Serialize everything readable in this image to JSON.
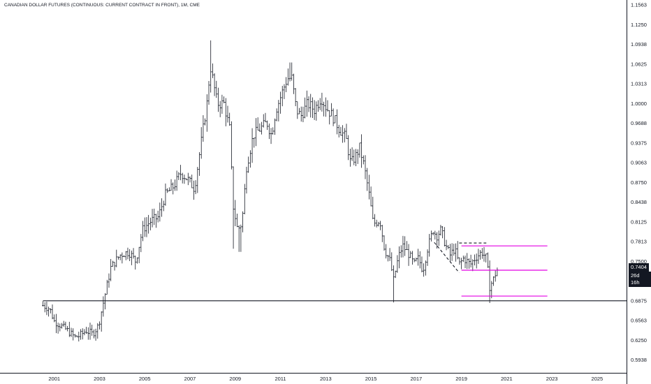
{
  "chart_data": {
    "type": "ohlc",
    "title": "CANADIAN DOLLAR FUTURES (CONTINUOUS: CURRENT CONTRACT IN FRONT), 1M, CME",
    "x_tick_labels": [
      "2001",
      "2003",
      "2005",
      "2007",
      "2009",
      "2011",
      "2013",
      "2015",
      "2017",
      "2019",
      "2021",
      "2023",
      "2025"
    ],
    "x_tick_values": [
      2001,
      2003,
      2005,
      2007,
      2009,
      2011,
      2013,
      2015,
      2017,
      2019,
      2021,
      2023,
      2025
    ],
    "xlim": [
      1998.6,
      2026.3
    ],
    "y_tick_labels": [
      "1.1563",
      "1.1250",
      "1.0938",
      "1.0625",
      "1.0313",
      "1.0000",
      "0.9688",
      "0.9375",
      "0.9063",
      "0.8750",
      "0.8438",
      "0.8125",
      "0.7813",
      "0.7500",
      "0.7188",
      "0.6875",
      "0.6563",
      "0.6250",
      "0.5938"
    ],
    "y_tick_values": [
      1.1563,
      1.125,
      1.0938,
      1.0625,
      1.0313,
      1.0,
      0.9688,
      0.9375,
      0.9063,
      0.875,
      0.8438,
      0.8125,
      0.7813,
      0.75,
      0.7188,
      0.6875,
      0.6563,
      0.625,
      0.5938
    ],
    "ylim": [
      0.5734,
      1.164
    ],
    "last_price": "0.7404",
    "last_price_value": 0.7404,
    "bar_timer": "26d 16h",
    "anchors": [
      [
        2000.5,
        0.68
      ],
      [
        2000.8,
        0.675
      ],
      [
        2001.0,
        0.655
      ],
      [
        2001.3,
        0.648
      ],
      [
        2001.6,
        0.64
      ],
      [
        2001.9,
        0.63
      ],
      [
        2002.1,
        0.632
      ],
      [
        2002.4,
        0.64
      ],
      [
        2002.7,
        0.635
      ],
      [
        2002.95,
        0.648
      ],
      [
        2003.2,
        0.69
      ],
      [
        2003.5,
        0.74
      ],
      [
        2003.9,
        0.76
      ],
      [
        2004.3,
        0.765
      ],
      [
        2004.6,
        0.75
      ],
      [
        2004.9,
        0.8
      ],
      [
        2005.3,
        0.815
      ],
      [
        2005.6,
        0.82
      ],
      [
        2005.9,
        0.855
      ],
      [
        2006.3,
        0.87
      ],
      [
        2006.6,
        0.89
      ],
      [
        2006.9,
        0.88
      ],
      [
        2007.2,
        0.865
      ],
      [
        2007.5,
        0.94
      ],
      [
        2007.75,
        1.0
      ],
      [
        2007.9,
        1.06
      ],
      [
        2008.2,
        1.0
      ],
      [
        2008.5,
        1.0
      ],
      [
        2008.75,
        0.96
      ],
      [
        2008.9,
        0.84
      ],
      [
        2009.1,
        0.8
      ],
      [
        2009.3,
        0.81
      ],
      [
        2009.5,
        0.9
      ],
      [
        2009.8,
        0.95
      ],
      [
        2010.1,
        0.96
      ],
      [
        2010.4,
        0.97
      ],
      [
        2010.6,
        0.95
      ],
      [
        2010.8,
        0.99
      ],
      [
        2011.0,
        1.01
      ],
      [
        2011.3,
        1.04
      ],
      [
        2011.5,
        1.04
      ],
      [
        2011.7,
        0.99
      ],
      [
        2011.9,
        0.98
      ],
      [
        2012.2,
        1.0
      ],
      [
        2012.5,
        0.99
      ],
      [
        2012.8,
        1.01
      ],
      [
        2013.0,
        0.995
      ],
      [
        2013.3,
        0.98
      ],
      [
        2013.6,
        0.96
      ],
      [
        2013.9,
        0.945
      ],
      [
        2014.1,
        0.905
      ],
      [
        2014.3,
        0.915
      ],
      [
        2014.5,
        0.93
      ],
      [
        2014.7,
        0.9
      ],
      [
        2014.9,
        0.86
      ],
      [
        2015.1,
        0.81
      ],
      [
        2015.4,
        0.815
      ],
      [
        2015.6,
        0.77
      ],
      [
        2015.85,
        0.75
      ],
      [
        2016.0,
        0.72
      ],
      [
        2016.2,
        0.755
      ],
      [
        2016.4,
        0.775
      ],
      [
        2016.7,
        0.76
      ],
      [
        2016.9,
        0.745
      ],
      [
        2017.1,
        0.755
      ],
      [
        2017.3,
        0.735
      ],
      [
        2017.5,
        0.77
      ],
      [
        2017.75,
        0.8
      ],
      [
        2017.9,
        0.79
      ],
      [
        2018.1,
        0.8
      ],
      [
        2018.3,
        0.775
      ],
      [
        2018.5,
        0.76
      ],
      [
        2018.7,
        0.77
      ],
      [
        2018.9,
        0.745
      ],
      [
        2019.1,
        0.755
      ],
      [
        2019.4,
        0.745
      ],
      [
        2019.6,
        0.755
      ],
      [
        2019.9,
        0.765
      ],
      [
        2020.1,
        0.755
      ],
      [
        2020.25,
        0.71
      ],
      [
        2020.4,
        0.72
      ],
      [
        2020.55,
        0.735
      ],
      [
        2020.65,
        0.74
      ]
    ],
    "lines": [
      {
        "kind": "horizontal",
        "color": "#131722",
        "y": 0.6875,
        "x1": 2000.5,
        "x2": 2026.3
      },
      {
        "kind": "segment",
        "color": "#e400e4",
        "y": 0.7745,
        "x1": 2019.0,
        "x2": 2022.8
      },
      {
        "kind": "segment",
        "color": "#e400e4",
        "y": 0.736,
        "x1": 2019.0,
        "x2": 2022.8
      },
      {
        "kind": "segment",
        "color": "#e400e4",
        "y": 0.695,
        "x1": 2019.0,
        "x2": 2022.8
      },
      {
        "kind": "dashed",
        "color": "#131722",
        "x1": 2018.9,
        "y1": 0.779,
        "x2": 2020.1,
        "y2": 0.779
      },
      {
        "kind": "dashed",
        "color": "#131722",
        "x1": 2017.8,
        "y1": 0.78,
        "x2": 2018.9,
        "y2": 0.732
      }
    ]
  }
}
